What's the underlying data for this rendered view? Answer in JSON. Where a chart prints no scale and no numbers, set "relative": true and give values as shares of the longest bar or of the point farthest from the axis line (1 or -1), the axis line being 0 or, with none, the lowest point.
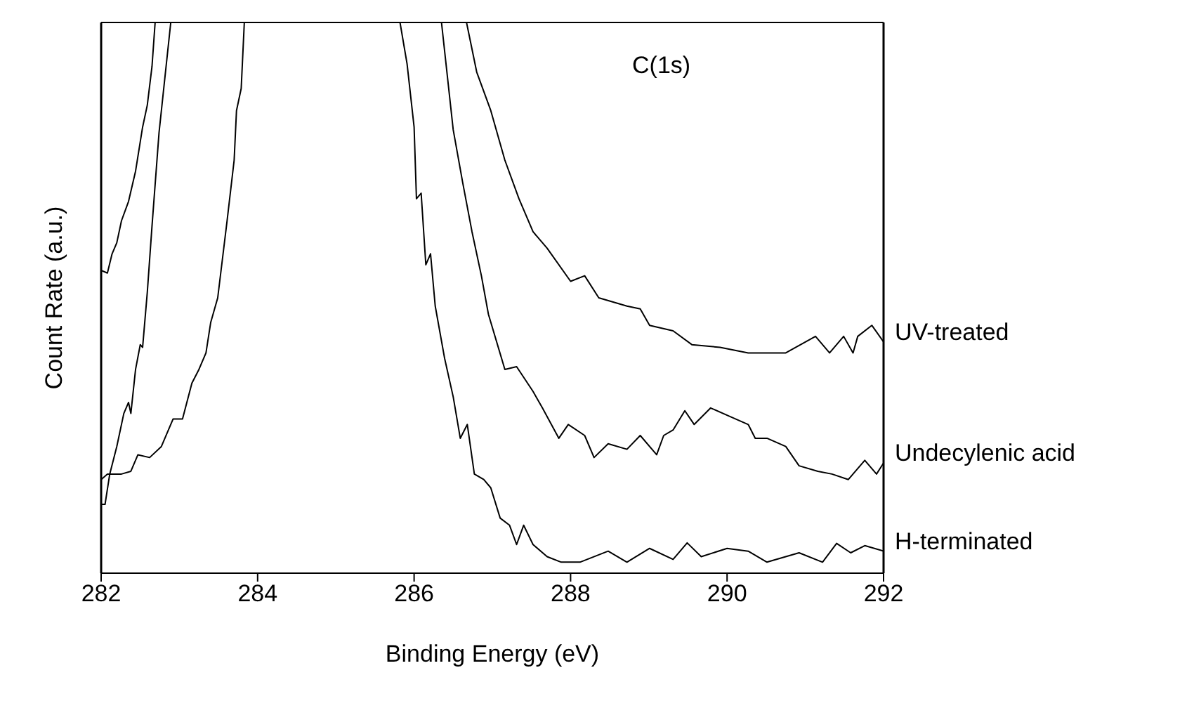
{
  "chart_data": {
    "type": "line",
    "title": "C(1s)",
    "xlabel": "Binding Energy (eV)",
    "ylabel": "Count Rate (a.u.)",
    "relative": true,
    "xlim": [
      282,
      292
    ],
    "xticks": [
      282,
      284,
      286,
      288,
      290,
      292
    ],
    "line_style": "solid",
    "series": [
      {
        "name": "UV-treated",
        "color": "#000000",
        "x": [
          282.0,
          282.08,
          282.14,
          282.2,
          282.26,
          282.35,
          282.44,
          282.53,
          282.59,
          282.65,
          282.69,
          284.6,
          286.67,
          286.8,
          286.98,
          287.16,
          287.34,
          287.52,
          287.7,
          288.0,
          288.18,
          288.36,
          288.72,
          288.89,
          289.01,
          289.31,
          289.55,
          289.91,
          290.27,
          290.33,
          290.75,
          291.13,
          291.31,
          291.49,
          291.61,
          291.67,
          291.85,
          292.0
        ],
        "values": [
          0.55,
          0.545,
          0.58,
          0.6,
          0.64,
          0.675,
          0.73,
          0.81,
          0.85,
          0.92,
          1.0,
          null,
          1.0,
          0.91,
          0.84,
          0.75,
          0.68,
          0.62,
          0.59,
          0.53,
          0.54,
          0.5,
          0.485,
          0.48,
          0.45,
          0.44,
          0.415,
          0.41,
          0.4,
          0.4,
          0.4,
          0.43,
          0.4,
          0.43,
          0.4,
          0.43,
          0.45,
          0.42
        ]
      },
      {
        "name": "Undecylenic acid",
        "color": "#000000",
        "x": [
          282.0,
          282.05,
          282.11,
          282.2,
          282.29,
          282.35,
          282.38,
          282.44,
          282.5,
          282.53,
          282.59,
          282.65,
          282.74,
          282.83,
          282.89,
          284.6,
          286.35,
          286.5,
          286.62,
          286.74,
          286.86,
          286.95,
          287.16,
          287.31,
          287.52,
          287.64,
          287.85,
          287.97,
          288.18,
          288.3,
          288.48,
          288.72,
          288.89,
          289.1,
          289.19,
          289.31,
          289.46,
          289.58,
          289.79,
          290.03,
          290.27,
          290.36,
          290.51,
          290.75,
          290.92,
          291.16,
          291.34,
          291.55,
          291.76,
          291.91,
          292.0
        ],
        "values": [
          0.125,
          0.125,
          0.18,
          0.23,
          0.29,
          0.31,
          0.29,
          0.37,
          0.415,
          0.41,
          0.51,
          0.63,
          0.8,
          0.92,
          1.0,
          null,
          1.0,
          0.805,
          0.71,
          0.62,
          0.54,
          0.47,
          0.37,
          0.375,
          0.33,
          0.3,
          0.245,
          0.27,
          0.25,
          0.21,
          0.235,
          0.225,
          0.25,
          0.215,
          0.25,
          0.26,
          0.295,
          0.27,
          0.3,
          0.285,
          0.27,
          0.245,
          0.245,
          0.23,
          0.195,
          0.185,
          0.18,
          0.17,
          0.205,
          0.18,
          0.2
        ]
      },
      {
        "name": "H-terminated",
        "color": "#000000",
        "x": [
          282.0,
          282.08,
          282.26,
          282.38,
          282.47,
          282.62,
          282.77,
          282.92,
          283.04,
          283.16,
          283.25,
          283.34,
          283.4,
          283.49,
          283.61,
          283.7,
          283.73,
          283.79,
          283.83,
          284.8,
          285.82,
          285.91,
          286.0,
          286.03,
          286.09,
          286.15,
          286.21,
          286.27,
          286.39,
          286.5,
          286.59,
          286.68,
          286.77,
          286.89,
          286.98,
          287.1,
          287.22,
          287.31,
          287.4,
          287.52,
          287.7,
          287.88,
          288.12,
          288.48,
          288.72,
          289.01,
          289.31,
          289.49,
          289.67,
          290.0,
          290.27,
          290.51,
          290.92,
          291.22,
          291.4,
          291.58,
          291.76,
          292.0
        ],
        "values": [
          0.17,
          0.18,
          0.18,
          0.185,
          0.215,
          0.21,
          0.23,
          0.28,
          0.28,
          0.345,
          0.37,
          0.4,
          0.455,
          0.5,
          0.64,
          0.75,
          0.84,
          0.88,
          1.0,
          null,
          1.0,
          0.925,
          0.81,
          0.68,
          0.69,
          0.56,
          0.58,
          0.485,
          0.39,
          0.32,
          0.245,
          0.27,
          0.18,
          0.17,
          0.155,
          0.1,
          0.087,
          0.052,
          0.087,
          0.052,
          0.03,
          0.02,
          0.02,
          0.04,
          0.02,
          0.045,
          0.025,
          0.055,
          0.03,
          0.045,
          0.04,
          0.02,
          0.037,
          0.02,
          0.054,
          0.037,
          0.05,
          0.04
        ]
      }
    ]
  }
}
